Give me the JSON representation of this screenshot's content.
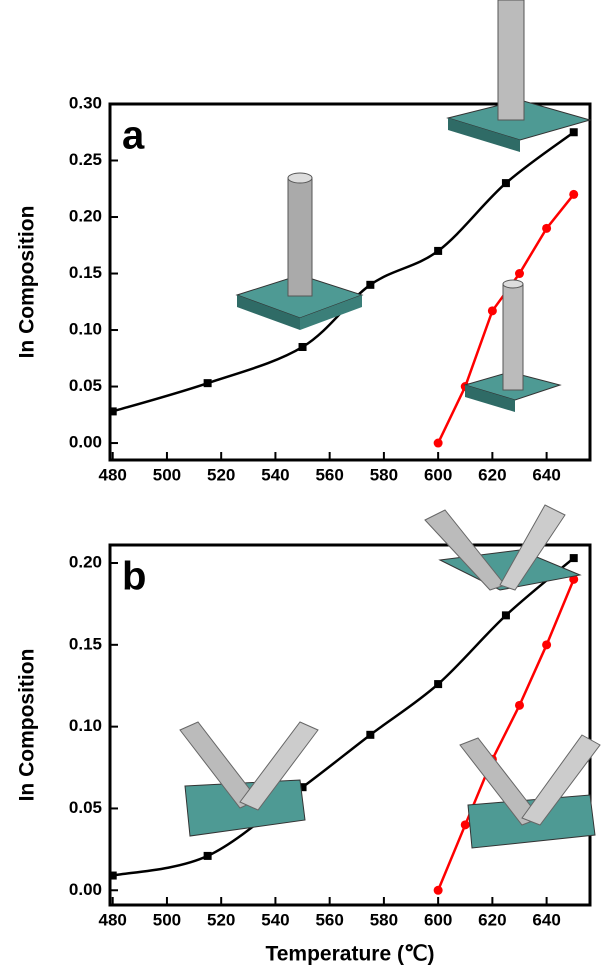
{
  "chart_data": [
    {
      "type": "line",
      "title": "a",
      "ylabel": "In Composition",
      "xlim": [
        479,
        656
      ],
      "xticks": [
        480,
        500,
        520,
        540,
        560,
        580,
        600,
        620,
        640
      ],
      "ylim": [
        -0.015,
        0.3
      ],
      "yticks": [
        {
          "value": 0,
          "label": "0.00"
        },
        {
          "value": 0.05,
          "label": "0.05"
        },
        {
          "value": 0.1,
          "label": "0.10"
        },
        {
          "value": 0.15,
          "label": "0.15"
        },
        {
          "value": 0.2,
          "label": "0.20"
        },
        {
          "value": 0.25,
          "label": "0.25"
        },
        {
          "value": 0.3,
          "label": "0.30"
        }
      ],
      "series": [
        {
          "color": "#000000",
          "marker": "square",
          "smooth": true,
          "x": [
            480,
            515,
            550,
            575,
            600,
            625,
            650
          ],
          "values": [
            0.028,
            0.053,
            0.085,
            0.14,
            0.17,
            0.23,
            0.275
          ]
        },
        {
          "color": "#ff0000",
          "marker": "circle",
          "smooth": false,
          "x": [
            600,
            610,
            620,
            630,
            640,
            650
          ],
          "values": [
            0,
            0.05,
            0.117,
            0.15,
            0.19,
            0.22
          ]
        }
      ]
    },
    {
      "type": "line",
      "title": "b",
      "ylabel": "In Composition",
      "xlabel": "Temperature (℃)",
      "xlim": [
        479,
        656
      ],
      "xticks": [
        480,
        500,
        520,
        540,
        560,
        580,
        600,
        620,
        640
      ],
      "ylim": [
        -0.009,
        0.211
      ],
      "yticks": [
        {
          "value": 0,
          "label": "0.00"
        },
        {
          "value": 0.05,
          "label": "0.05"
        },
        {
          "value": 0.1,
          "label": "0.10"
        },
        {
          "value": 0.15,
          "label": "0.15"
        },
        {
          "value": 0.2,
          "label": "0.20"
        }
      ],
      "series": [
        {
          "color": "#000000",
          "marker": "square",
          "smooth": true,
          "x": [
            480,
            515,
            550,
            575,
            600,
            625,
            650
          ],
          "values": [
            0.009,
            0.021,
            0.063,
            0.095,
            0.126,
            0.168,
            0.203
          ]
        },
        {
          "color": "#ff0000",
          "marker": "circle",
          "smooth": false,
          "x": [
            600,
            610,
            620,
            630,
            640,
            650
          ],
          "values": [
            0,
            0.04,
            0.08,
            0.113,
            0.15,
            0.19
          ]
        }
      ]
    }
  ]
}
